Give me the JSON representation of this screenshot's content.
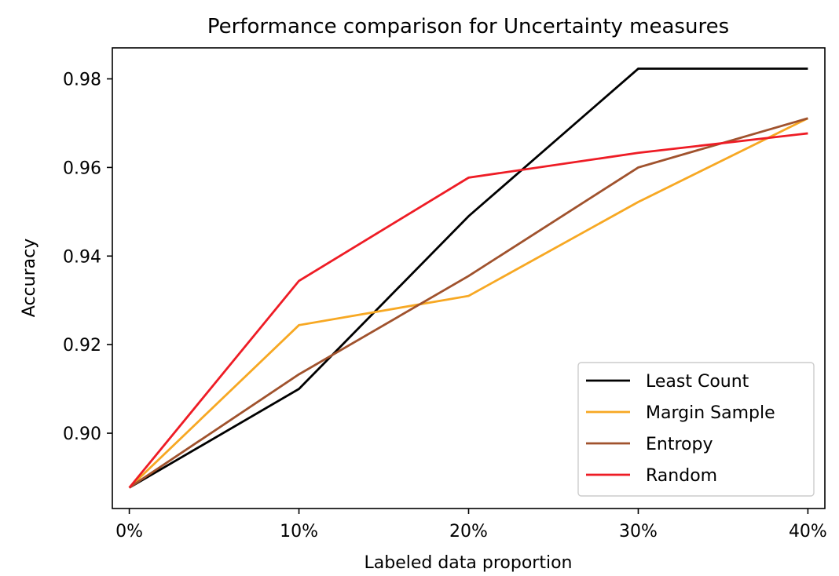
{
  "chart_data": {
    "type": "line",
    "title": "Performance comparison for Uncertainty measures",
    "xlabel": "Labeled data proportion",
    "ylabel": "Accuracy",
    "categories": [
      "0%",
      "10%",
      "20%",
      "30%",
      "40%"
    ],
    "x": [
      0,
      10,
      20,
      30,
      40
    ],
    "xlim": [
      -1.0,
      41.0
    ],
    "ylim": [
      0.883,
      0.987
    ],
    "yticks": [
      0.9,
      0.92,
      0.94,
      0.96,
      0.98
    ],
    "ytick_labels": [
      "0.90",
      "0.92",
      "0.94",
      "0.96",
      "0.98"
    ],
    "grid": false,
    "legend_position": "lower-right",
    "series": [
      {
        "name": "Least Count",
        "color": "#000000",
        "values": [
          0.8877,
          0.91,
          0.949,
          0.9823,
          0.9823
        ]
      },
      {
        "name": "Margin Sample",
        "color": "#f7a823",
        "values": [
          0.8877,
          0.9244,
          0.931,
          0.9522,
          0.9711
        ]
      },
      {
        "name": "Entropy",
        "color": "#a0522d",
        "values": [
          0.8877,
          0.9133,
          0.9355,
          0.96,
          0.9711
        ]
      },
      {
        "name": "Random",
        "color": "#ee1c25",
        "values": [
          0.8877,
          0.9344,
          0.9577,
          0.9633,
          0.9677
        ]
      }
    ]
  }
}
